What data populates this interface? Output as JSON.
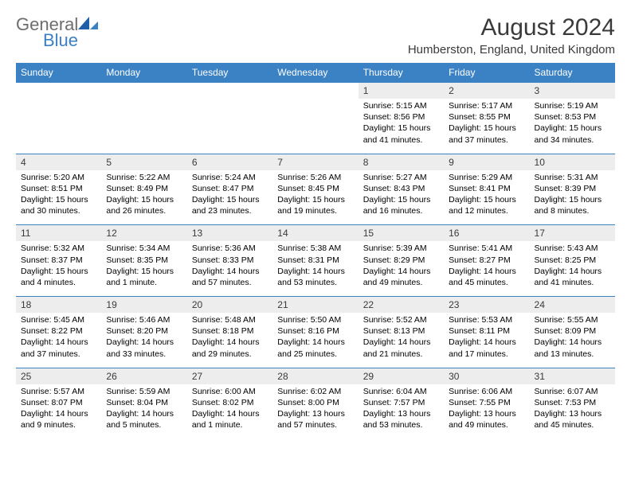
{
  "brand": {
    "part1": "General",
    "part2": "Blue"
  },
  "title": "August 2024",
  "location": "Humberston, England, United Kingdom",
  "colors": {
    "header_bg": "#3b82c4",
    "header_text": "#ffffff",
    "date_bg": "#ededed",
    "border": "#3b82c4",
    "logo_gray": "#6d6d6d",
    "logo_blue": "#3b7fc4"
  },
  "weekdays": [
    "Sunday",
    "Monday",
    "Tuesday",
    "Wednesday",
    "Thursday",
    "Friday",
    "Saturday"
  ],
  "weeks": [
    {
      "dates": [
        "",
        "",
        "",
        "",
        "1",
        "2",
        "3"
      ],
      "info": [
        "",
        "",
        "",
        "",
        "Sunrise: 5:15 AM\nSunset: 8:56 PM\nDaylight: 15 hours and 41 minutes.",
        "Sunrise: 5:17 AM\nSunset: 8:55 PM\nDaylight: 15 hours and 37 minutes.",
        "Sunrise: 5:19 AM\nSunset: 8:53 PM\nDaylight: 15 hours and 34 minutes."
      ]
    },
    {
      "dates": [
        "4",
        "5",
        "6",
        "7",
        "8",
        "9",
        "10"
      ],
      "info": [
        "Sunrise: 5:20 AM\nSunset: 8:51 PM\nDaylight: 15 hours and 30 minutes.",
        "Sunrise: 5:22 AM\nSunset: 8:49 PM\nDaylight: 15 hours and 26 minutes.",
        "Sunrise: 5:24 AM\nSunset: 8:47 PM\nDaylight: 15 hours and 23 minutes.",
        "Sunrise: 5:26 AM\nSunset: 8:45 PM\nDaylight: 15 hours and 19 minutes.",
        "Sunrise: 5:27 AM\nSunset: 8:43 PM\nDaylight: 15 hours and 16 minutes.",
        "Sunrise: 5:29 AM\nSunset: 8:41 PM\nDaylight: 15 hours and 12 minutes.",
        "Sunrise: 5:31 AM\nSunset: 8:39 PM\nDaylight: 15 hours and 8 minutes."
      ]
    },
    {
      "dates": [
        "11",
        "12",
        "13",
        "14",
        "15",
        "16",
        "17"
      ],
      "info": [
        "Sunrise: 5:32 AM\nSunset: 8:37 PM\nDaylight: 15 hours and 4 minutes.",
        "Sunrise: 5:34 AM\nSunset: 8:35 PM\nDaylight: 15 hours and 1 minute.",
        "Sunrise: 5:36 AM\nSunset: 8:33 PM\nDaylight: 14 hours and 57 minutes.",
        "Sunrise: 5:38 AM\nSunset: 8:31 PM\nDaylight: 14 hours and 53 minutes.",
        "Sunrise: 5:39 AM\nSunset: 8:29 PM\nDaylight: 14 hours and 49 minutes.",
        "Sunrise: 5:41 AM\nSunset: 8:27 PM\nDaylight: 14 hours and 45 minutes.",
        "Sunrise: 5:43 AM\nSunset: 8:25 PM\nDaylight: 14 hours and 41 minutes."
      ]
    },
    {
      "dates": [
        "18",
        "19",
        "20",
        "21",
        "22",
        "23",
        "24"
      ],
      "info": [
        "Sunrise: 5:45 AM\nSunset: 8:22 PM\nDaylight: 14 hours and 37 minutes.",
        "Sunrise: 5:46 AM\nSunset: 8:20 PM\nDaylight: 14 hours and 33 minutes.",
        "Sunrise: 5:48 AM\nSunset: 8:18 PM\nDaylight: 14 hours and 29 minutes.",
        "Sunrise: 5:50 AM\nSunset: 8:16 PM\nDaylight: 14 hours and 25 minutes.",
        "Sunrise: 5:52 AM\nSunset: 8:13 PM\nDaylight: 14 hours and 21 minutes.",
        "Sunrise: 5:53 AM\nSunset: 8:11 PM\nDaylight: 14 hours and 17 minutes.",
        "Sunrise: 5:55 AM\nSunset: 8:09 PM\nDaylight: 14 hours and 13 minutes."
      ]
    },
    {
      "dates": [
        "25",
        "26",
        "27",
        "28",
        "29",
        "30",
        "31"
      ],
      "info": [
        "Sunrise: 5:57 AM\nSunset: 8:07 PM\nDaylight: 14 hours and 9 minutes.",
        "Sunrise: 5:59 AM\nSunset: 8:04 PM\nDaylight: 14 hours and 5 minutes.",
        "Sunrise: 6:00 AM\nSunset: 8:02 PM\nDaylight: 14 hours and 1 minute.",
        "Sunrise: 6:02 AM\nSunset: 8:00 PM\nDaylight: 13 hours and 57 minutes.",
        "Sunrise: 6:04 AM\nSunset: 7:57 PM\nDaylight: 13 hours and 53 minutes.",
        "Sunrise: 6:06 AM\nSunset: 7:55 PM\nDaylight: 13 hours and 49 minutes.",
        "Sunrise: 6:07 AM\nSunset: 7:53 PM\nDaylight: 13 hours and 45 minutes."
      ]
    }
  ]
}
